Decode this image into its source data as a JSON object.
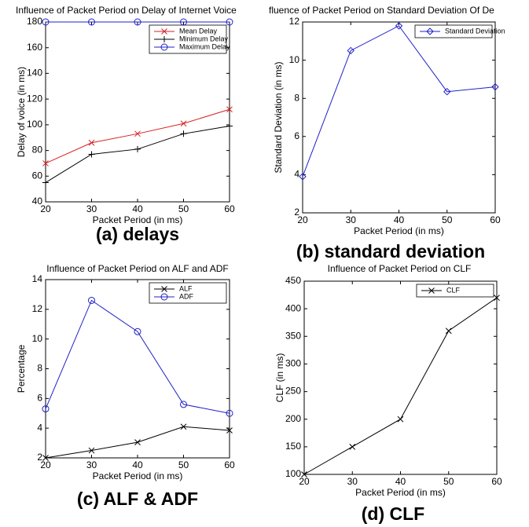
{
  "chart_data": [
    {
      "type": "line",
      "title": "Influence of Packet Period on Delay of Internet Voice",
      "xlabel": "Packet Period (in ms)",
      "ylabel": "Delay of voice (in ms)",
      "caption": "(a) delays",
      "x": [
        20,
        30,
        40,
        50,
        60
      ],
      "xlim": [
        20,
        60
      ],
      "xticks": [
        20,
        30,
        40,
        50,
        60
      ],
      "ylim": [
        40,
        180
      ],
      "yticks": [
        40,
        60,
        80,
        100,
        120,
        140,
        160,
        180
      ],
      "legend": "upper right",
      "series": [
        {
          "name": "Mean Delay",
          "color": "#d62020",
          "marker": "x",
          "values": [
            70,
            86,
            93,
            101,
            112
          ]
        },
        {
          "name": "Minimum Delay",
          "color": "#000000",
          "marker": "+",
          "values": [
            55,
            77,
            81,
            93,
            99
          ]
        },
        {
          "name": "Maximum Delay",
          "color": "#2020c8",
          "marker": "o",
          "values": [
            180,
            180,
            180,
            180,
            180
          ]
        }
      ]
    },
    {
      "type": "line",
      "title": "fluence of Packet Period on Standard Deviation Of De",
      "xlabel": "Packet Period (in ms)",
      "ylabel": "Standard Deviation (in ms)",
      "caption": "(b) standard deviation",
      "x": [
        20,
        30,
        40,
        50,
        60
      ],
      "xlim": [
        20,
        60
      ],
      "xticks": [
        20,
        30,
        40,
        50,
        60
      ],
      "ylim": [
        2,
        12
      ],
      "yticks": [
        2,
        4,
        6,
        8,
        10,
        12
      ],
      "legend": "upper right",
      "series": [
        {
          "name": "Standard Deviation",
          "color": "#2020c8",
          "marker": "d",
          "values": [
            3.9,
            10.5,
            11.8,
            8.35,
            8.6
          ]
        }
      ]
    },
    {
      "type": "line",
      "title": "Influence of Packet Period on ALF and ADF",
      "xlabel": "Packet Period (in ms)",
      "ylabel": "Percentage",
      "caption": "(c) ALF & ADF",
      "x": [
        20,
        30,
        40,
        50,
        60
      ],
      "xlim": [
        20,
        60
      ],
      "xticks": [
        20,
        30,
        40,
        50,
        60
      ],
      "ylim": [
        2,
        14
      ],
      "yticks": [
        2,
        4,
        6,
        8,
        10,
        12,
        14
      ],
      "legend": "upper right",
      "series": [
        {
          "name": "ALF",
          "color": "#000000",
          "marker": "x",
          "values": [
            2.0,
            2.5,
            3.05,
            4.1,
            3.85
          ]
        },
        {
          "name": "ADF",
          "color": "#2020c8",
          "marker": "o",
          "values": [
            5.3,
            12.6,
            10.5,
            5.6,
            5.0
          ]
        }
      ]
    },
    {
      "type": "line",
      "title": "Influence of Packet Period on CLF",
      "xlabel": "Packet Period (in ms)",
      "ylabel": "CLF (in ms)",
      "caption": "(d) CLF",
      "x": [
        20,
        30,
        40,
        50,
        60
      ],
      "xlim": [
        20,
        60
      ],
      "xticks": [
        20,
        30,
        40,
        50,
        60
      ],
      "ylim": [
        100,
        450
      ],
      "yticks": [
        100,
        150,
        200,
        250,
        300,
        350,
        400,
        450
      ],
      "legend": "upper right",
      "series": [
        {
          "name": "CLF",
          "color": "#000000",
          "marker": "x",
          "values": [
            100,
            150,
            200,
            360,
            420
          ]
        }
      ]
    }
  ]
}
